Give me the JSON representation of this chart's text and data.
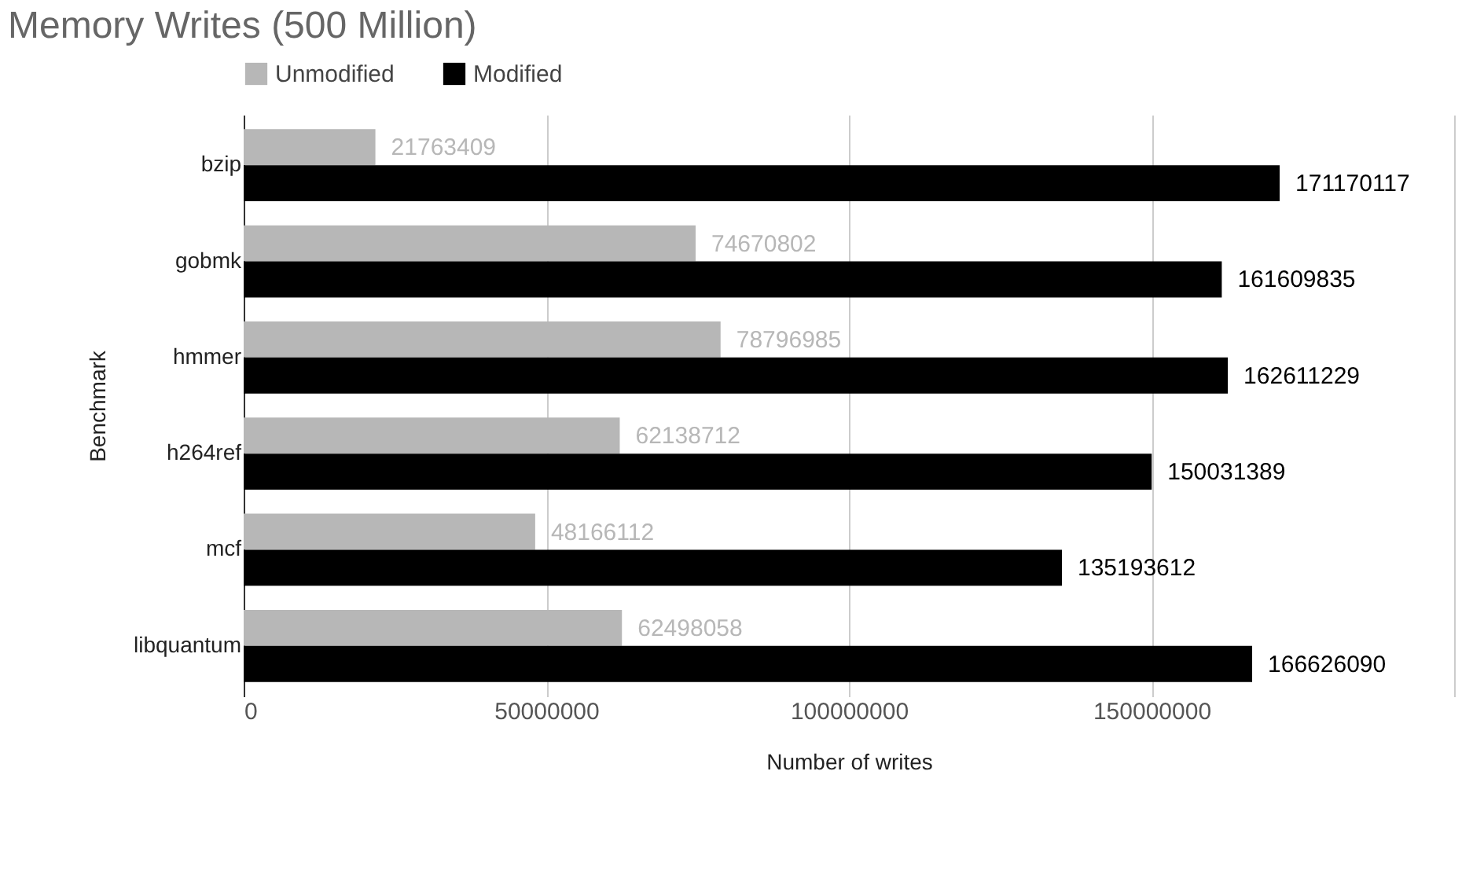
{
  "chart_data": {
    "type": "bar",
    "orientation": "horizontal",
    "title": "Memory Writes (500 Million)",
    "xlabel": "Number of writes",
    "ylabel": "Benchmark",
    "categories": [
      "bzip",
      "gobmk",
      "hmmer",
      "h264ref",
      "mcf",
      "libquantum"
    ],
    "series": [
      {
        "name": "Unmodified",
        "color": "#b7b7b7",
        "values": [
          21763409,
          74670802,
          78796985,
          62138712,
          48166112,
          62498058
        ]
      },
      {
        "name": "Modified",
        "color": "#000000",
        "values": [
          171170117,
          161609835,
          162611229,
          150031389,
          135193612,
          166626090
        ]
      }
    ],
    "xlim": [
      0,
      200000000
    ],
    "xticks": [
      0,
      50000000,
      100000000,
      150000000,
      {
        "value": 200000000,
        "label": null
      }
    ],
    "grid": "x",
    "legend": "top",
    "data_labels": true
  }
}
